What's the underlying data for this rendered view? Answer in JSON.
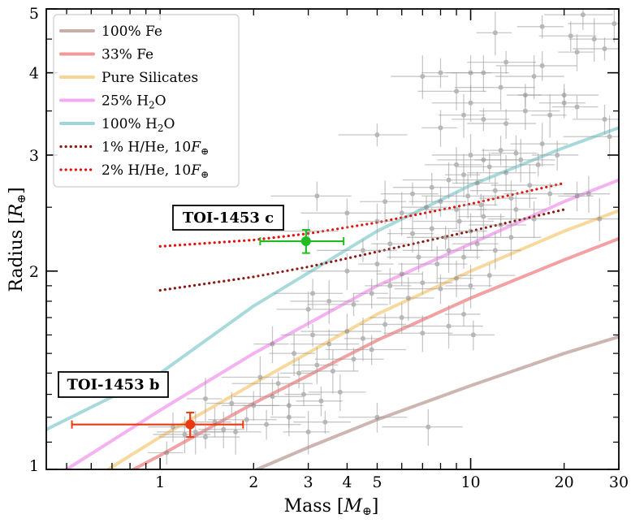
{
  "chart_data": {
    "type": "scatter",
    "xlabel": "Mass [M⊕]",
    "ylabel": "Radius [R⊕]",
    "xscale": "log",
    "yscale": "log",
    "xlim": [
      0.43,
      30
    ],
    "ylim": [
      1,
      5
    ],
    "x_tick_labels": [
      "1",
      "2",
      "3",
      "4",
      "5",
      "10",
      "20",
      "30"
    ],
    "x_tick_values": [
      1,
      2,
      3,
      4,
      5,
      10,
      20,
      30
    ],
    "y_tick_labels": [
      "1",
      "2",
      "3",
      "4",
      "5"
    ],
    "y_tick_values": [
      1,
      2,
      3,
      4,
      5
    ],
    "legend_position": "top-left",
    "legend": [
      {
        "label": "100% Fe",
        "color": "#c8ada9",
        "style": "solid"
      },
      {
        "label": "33% Fe",
        "color": "#f2989a",
        "style": "solid"
      },
      {
        "label": "Pure Silicates",
        "color": "#f7d592",
        "style": "solid"
      },
      {
        "label": "25% H2O",
        "color": "#f4aaf0",
        "style": "solid"
      },
      {
        "label": "100% H2O",
        "color": "#9fd6d8",
        "style": "solid"
      },
      {
        "label": "1% H/He, 10F⊕",
        "color": "#8b1a13",
        "style": "dotted"
      },
      {
        "label": "2% H/He, 10F⊕",
        "color": "#e3120b",
        "style": "dotted"
      }
    ],
    "model_curves": [
      {
        "name": "100% Fe",
        "color": "#c8ada9",
        "points": [
          [
            2.05,
            1.0
          ],
          [
            3,
            1.08
          ],
          [
            5,
            1.19
          ],
          [
            10,
            1.34
          ],
          [
            20,
            1.5
          ],
          [
            30,
            1.59
          ]
        ]
      },
      {
        "name": "33% Fe",
        "color": "#f2989a",
        "points": [
          [
            0.82,
            1.0
          ],
          [
            1,
            1.05
          ],
          [
            2,
            1.26
          ],
          [
            5,
            1.57
          ],
          [
            10,
            1.82
          ],
          [
            20,
            2.08
          ],
          [
            30,
            2.24
          ]
        ]
      },
      {
        "name": "Pure Silicates",
        "color": "#f7d592",
        "points": [
          [
            0.68,
            1.0
          ],
          [
            1,
            1.12
          ],
          [
            2,
            1.35
          ],
          [
            5,
            1.72
          ],
          [
            10,
            2.0
          ],
          [
            20,
            2.3
          ],
          [
            30,
            2.47
          ]
        ]
      },
      {
        "name": "25% H2O",
        "color": "#f4aaf0",
        "points": [
          [
            0.5,
            1.0
          ],
          [
            1,
            1.23
          ],
          [
            2,
            1.5
          ],
          [
            5,
            1.9
          ],
          [
            10,
            2.2
          ],
          [
            20,
            2.55
          ],
          [
            30,
            2.75
          ]
        ]
      },
      {
        "name": "100% H2O",
        "color": "#9fd6d8",
        "points": [
          [
            0.43,
            1.15
          ],
          [
            1,
            1.4
          ],
          [
            2,
            1.77
          ],
          [
            5,
            2.3
          ],
          [
            10,
            2.7
          ],
          [
            20,
            3.08
          ],
          [
            30,
            3.3
          ]
        ]
      },
      {
        "name": "1% H/He, 10F⊕",
        "color": "#8b1a13",
        "dotted": true,
        "points": [
          [
            1,
            1.87
          ],
          [
            2,
            1.96
          ],
          [
            3,
            2.03
          ],
          [
            5,
            2.14
          ],
          [
            10,
            2.3
          ],
          [
            20,
            2.48
          ]
        ]
      },
      {
        "name": "2% H/He, 10F⊕",
        "color": "#e3120b",
        "dotted": true,
        "points": [
          [
            1,
            2.18
          ],
          [
            2,
            2.23
          ],
          [
            3,
            2.28
          ],
          [
            5,
            2.37
          ],
          [
            10,
            2.53
          ],
          [
            20,
            2.72
          ]
        ]
      }
    ],
    "population": {
      "color": "#9a9a9a",
      "points": [
        [
          1.05,
          1.06
        ],
        [
          1.1,
          1.16
        ],
        [
          1.2,
          1.13
        ],
        [
          1.3,
          1.14
        ],
        [
          1.4,
          1.12
        ],
        [
          1.5,
          1.18
        ],
        [
          1.6,
          1.15
        ],
        [
          1.75,
          1.14
        ],
        [
          1.9,
          1.19
        ],
        [
          2.2,
          1.17
        ],
        [
          2.6,
          1.2
        ],
        [
          3.0,
          1.14
        ],
        [
          3.4,
          1.18
        ],
        [
          5.0,
          1.2
        ],
        [
          7.3,
          1.16
        ],
        [
          1.4,
          1.28
        ],
        [
          1.7,
          1.26
        ],
        [
          2.0,
          1.25
        ],
        [
          2.3,
          1.29
        ],
        [
          2.6,
          1.25
        ],
        [
          2.9,
          1.3
        ],
        [
          3.3,
          1.27
        ],
        [
          3.8,
          1.31
        ],
        [
          2.1,
          1.38
        ],
        [
          2.4,
          1.35
        ],
        [
          2.8,
          1.4
        ],
        [
          3.2,
          1.44
        ],
        [
          3.6,
          1.41
        ],
        [
          4.2,
          1.47
        ],
        [
          4.8,
          1.52
        ],
        [
          2.3,
          1.55
        ],
        [
          2.7,
          1.5
        ],
        [
          3.1,
          1.6
        ],
        [
          3.5,
          1.55
        ],
        [
          4.0,
          1.62
        ],
        [
          4.5,
          1.58
        ],
        [
          5.3,
          1.66
        ],
        [
          6.0,
          1.7
        ],
        [
          7.0,
          1.61
        ],
        [
          8.5,
          1.65
        ],
        [
          9.5,
          1.72
        ],
        [
          10.2,
          1.6
        ],
        [
          3.0,
          1.75
        ],
        [
          3.5,
          1.8
        ],
        [
          4.2,
          1.78
        ],
        [
          4.8,
          1.85
        ],
        [
          5.5,
          1.9
        ],
        [
          6.3,
          1.82
        ],
        [
          7.0,
          1.92
        ],
        [
          8.0,
          1.88
        ],
        [
          9.0,
          1.95
        ],
        [
          10.0,
          1.9
        ],
        [
          11.5,
          1.97
        ],
        [
          3.1,
          1.85
        ],
        [
          4.0,
          2.0
        ],
        [
          5.0,
          2.05
        ],
        [
          6.0,
          1.98
        ],
        [
          6.8,
          2.1
        ],
        [
          7.8,
          2.05
        ],
        [
          8.5,
          2.15
        ],
        [
          9.5,
          2.1
        ],
        [
          10.5,
          2.2
        ],
        [
          12.0,
          2.15
        ],
        [
          13.5,
          2.25
        ],
        [
          4.5,
          2.15
        ],
        [
          5.5,
          2.2
        ],
        [
          6.5,
          2.28
        ],
        [
          7.5,
          2.32
        ],
        [
          8.3,
          2.25
        ],
        [
          9.2,
          2.38
        ],
        [
          10.0,
          2.3
        ],
        [
          11.0,
          2.42
        ],
        [
          12.5,
          2.35
        ],
        [
          14.0,
          2.48
        ],
        [
          16.0,
          2.4
        ],
        [
          6.0,
          2.45
        ],
        [
          7.2,
          2.5
        ],
        [
          8.0,
          2.55
        ],
        [
          9.0,
          2.48
        ],
        [
          9.8,
          2.6
        ],
        [
          10.8,
          2.52
        ],
        [
          12.0,
          2.65
        ],
        [
          13.5,
          2.58
        ],
        [
          15.5,
          2.7
        ],
        [
          18.0,
          2.62
        ],
        [
          22.0,
          2.6
        ],
        [
          24.0,
          2.62
        ],
        [
          26.0,
          2.4
        ],
        [
          3.0,
          2.3
        ],
        [
          4.0,
          2.45
        ],
        [
          5.0,
          2.38
        ],
        [
          5.3,
          2.55
        ],
        [
          6.5,
          2.62
        ],
        [
          7.5,
          2.68
        ],
        [
          8.5,
          2.75
        ],
        [
          9.5,
          2.8
        ],
        [
          10.5,
          2.72
        ],
        [
          11.5,
          2.88
        ],
        [
          13.0,
          2.82
        ],
        [
          14.5,
          2.95
        ],
        [
          16.5,
          2.9
        ],
        [
          19.0,
          3.0
        ],
        [
          9.0,
          2.9
        ],
        [
          10.0,
          3.0
        ],
        [
          11.0,
          2.95
        ],
        [
          12.5,
          3.05
        ],
        [
          14.0,
          3.02
        ],
        [
          17.0,
          3.12
        ],
        [
          5.0,
          3.22
        ],
        [
          3.2,
          2.6
        ],
        [
          8.0,
          3.3
        ],
        [
          9.5,
          3.45
        ],
        [
          11.0,
          3.4
        ],
        [
          13.0,
          3.35
        ],
        [
          15.0,
          3.5
        ],
        [
          18.0,
          3.45
        ],
        [
          22.0,
          3.55
        ],
        [
          27.0,
          3.4
        ],
        [
          10.0,
          3.6
        ],
        [
          12.5,
          3.8
        ],
        [
          15.0,
          3.7
        ],
        [
          20.0,
          3.6
        ],
        [
          11.0,
          4.0
        ],
        [
          16.0,
          3.95
        ],
        [
          20.0,
          3.7
        ],
        [
          8.0,
          4.0
        ],
        [
          10.0,
          4.0
        ],
        [
          7.0,
          3.95
        ],
        [
          13.0,
          4.15
        ],
        [
          17.0,
          4.1
        ],
        [
          22.0,
          4.3
        ],
        [
          25.0,
          4.5
        ],
        [
          27.0,
          4.35
        ],
        [
          23.0,
          4.9
        ],
        [
          29.0,
          4.75
        ],
        [
          12.0,
          4.6
        ],
        [
          17.0,
          4.7
        ],
        [
          21.0,
          4.55
        ],
        [
          9.0,
          3.75
        ],
        [
          28.0,
          3.2
        ]
      ]
    },
    "highlighted_planets": [
      {
        "name": "TOI-1453 b",
        "label": "TOI-1453 b",
        "mass": 1.25,
        "mass_lo": 0.73,
        "mass_hi": 0.6,
        "radius": 1.17,
        "radius_err": 0.05,
        "color": "#ea3a12"
      },
      {
        "name": "TOI-1453 c",
        "label": "TOI-1453 c",
        "mass": 2.95,
        "mass_lo": 0.85,
        "mass_hi": 0.95,
        "radius": 2.22,
        "radius_err": 0.09,
        "color": "#22bb22"
      }
    ]
  }
}
